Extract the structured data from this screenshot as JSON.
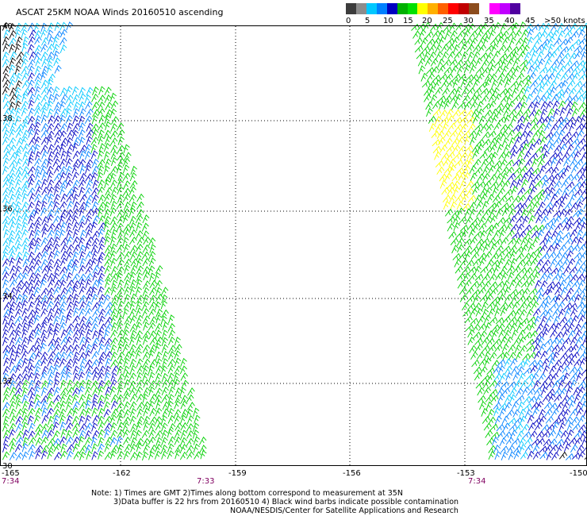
{
  "title": "ASCAT 25KM NOAA Winds 20160510 ascending",
  "scale": {
    "colors": [
      "#3c3c3c",
      "#8c8c8c",
      "#00c8ff",
      "#0080ff",
      "#0000c0",
      "#00b000",
      "#00e000",
      "#ffff00",
      "#ffb000",
      "#ff6000",
      "#ff0000",
      "#c00000",
      "#8c4c1c",
      "#ffffff",
      "#ff00ff",
      "#c000ff",
      "#5000a0"
    ],
    "labels": [
      "0",
      "5",
      "10",
      "15",
      "20",
      "25",
      "30",
      "35",
      "40",
      "45",
      ">50 knots"
    ]
  },
  "map": {
    "lat_labels": [
      "40",
      "38",
      "36",
      "34",
      "32",
      "30"
    ],
    "lon_labels": [
      "-165",
      "-162",
      "-159",
      "-156",
      "-153",
      "-150"
    ],
    "times": [
      "7:34",
      "7:33",
      "7:34"
    ]
  },
  "notes": {
    "line1": "Note: 1) Times are GMT 2)Times along bottom correspond to measurement at 35N",
    "line2": "3)Data buffer is 22 hrs from 20160510 4) Black wind barbs indicate possible contamination",
    "line3": "NOAA/NESDIS/Center for Satellite Applications and Research"
  }
}
